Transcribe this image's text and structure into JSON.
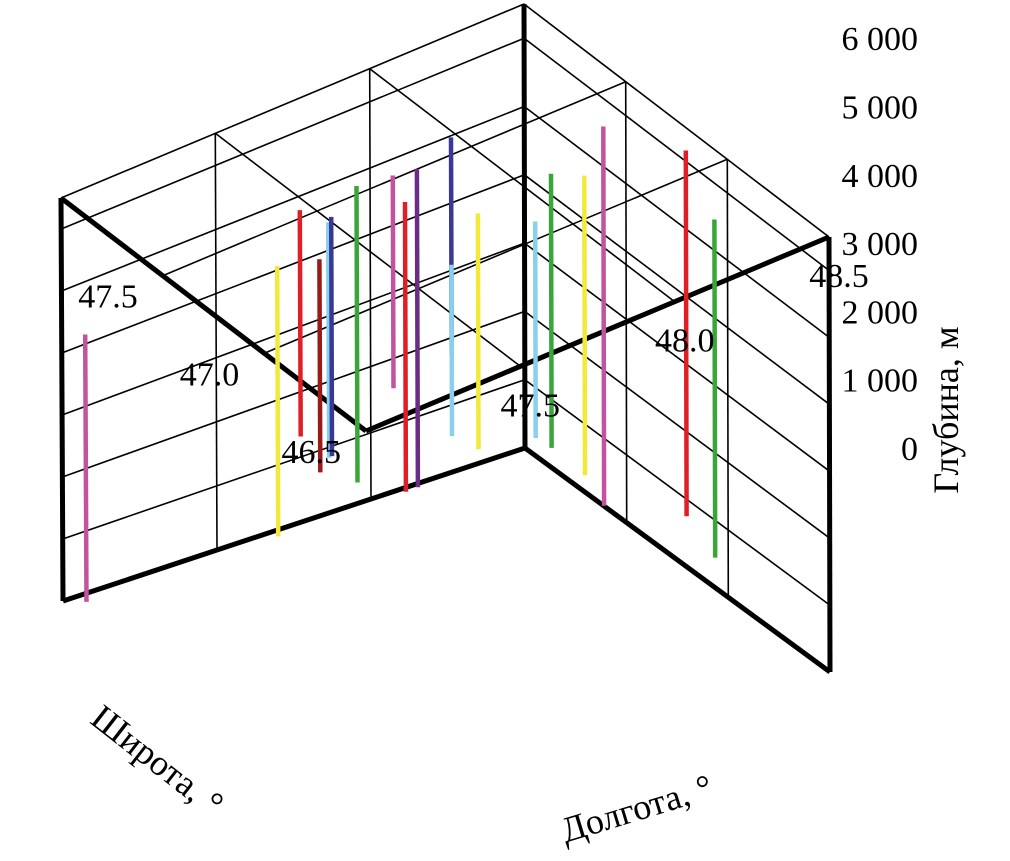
{
  "chart_data": {
    "type": "3d-vertical-segments",
    "xlabel": "Долгота, °",
    "ylabel": "Широта, °",
    "zlabel": "Глубина, м",
    "x_ticks": [
      "47.5",
      "48.0",
      "48.5"
    ],
    "y_ticks": [
      "47.5",
      "47.0",
      "46.5"
    ],
    "z_ticks": [
      "0",
      "1 000",
      "2 000",
      "3 000",
      "4 000",
      "5 000",
      "6 000"
    ],
    "xlim": [
      47.0,
      48.5
    ],
    "ylim": [
      46.5,
      48.0
    ],
    "zlim": [
      0,
      6500
    ],
    "grid": true,
    "segments": [
      {
        "lon": 47.05,
        "lat": 47.96,
        "top": 0,
        "bottom": 4300,
        "color": "#c2549f"
      },
      {
        "lon": 47.33,
        "lat": 47.23,
        "top": 3350,
        "bottom": 6750,
        "color": "#9a1a1a"
      },
      {
        "lon": 47.6,
        "lat": 47.85,
        "top": 400,
        "bottom": 4600,
        "color": "#f2e93a"
      },
      {
        "lon": 47.51,
        "lat": 47.6,
        "top": 2700,
        "bottom": 6250,
        "color": "#df1f26"
      },
      {
        "lon": 47.51,
        "lat": 47.46,
        "top": 2700,
        "bottom": 6400,
        "color": "#88d0ec"
      },
      {
        "lon": 47.69,
        "lat": 47.72,
        "top": 1800,
        "bottom": 5500,
        "color": "#3a3896"
      },
      {
        "lon": 47.93,
        "lat": 47.96,
        "top": 450,
        "bottom": 4950,
        "color": "#3aa63a"
      },
      {
        "lon": 47.89,
        "lat": 47.72,
        "top": 2500,
        "bottom": 5750,
        "color": "#c2549f"
      },
      {
        "lon": 48.1,
        "lat": 47.98,
        "top": 0,
        "bottom": 4350,
        "color": "#df1f26"
      },
      {
        "lon": 48.06,
        "lat": 47.86,
        "top": 400,
        "bottom": 5200,
        "color": "#6b2c86"
      },
      {
        "lon": 48.0,
        "lat": 47.6,
        "top": 3100,
        "bottom": 6400,
        "color": "#3a3896"
      },
      {
        "lon": 48.25,
        "lat": 47.98,
        "top": 600,
        "bottom": 3150,
        "color": "#88d0ec"
      },
      {
        "lon": 48.29,
        "lat": 47.91,
        "top": 500,
        "bottom": 4000,
        "color": "#f2e93a"
      },
      {
        "lon": 48.39,
        "lat": 47.78,
        "top": 800,
        "bottom": 4000,
        "color": "#88d0ec"
      },
      {
        "lon": 48.56,
        "lat": 47.96,
        "top": 0,
        "bottom": 4000,
        "color": "#3aa63a"
      },
      {
        "lon": 48.51,
        "lat": 47.72,
        "top": 200,
        "bottom": 4600,
        "color": "#f2e93a"
      },
      {
        "lon": 48.46,
        "lat": 47.55,
        "top": 200,
        "bottom": 5800,
        "color": "#c2549f"
      },
      {
        "lon": 48.53,
        "lat": 47.25,
        "top": 600,
        "bottom": 6000,
        "color": "#df1f26"
      },
      {
        "lon": 48.53,
        "lat": 47.11,
        "top": 300,
        "bottom": 5300,
        "color": "#3aa63a"
      }
    ]
  }
}
